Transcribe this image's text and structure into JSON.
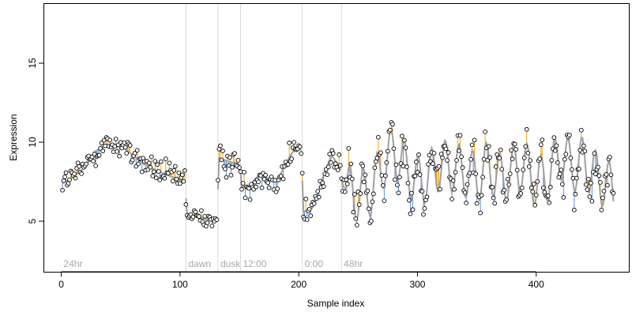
{
  "chart_data": {
    "type": "scatter",
    "title": "",
    "xlabel": "Sample index",
    "ylabel": "Expression",
    "xlim": [
      -15,
      478
    ],
    "ylim": [
      1.8,
      18.8
    ],
    "x_ticks": [
      0,
      100,
      200,
      300,
      400
    ],
    "y_ticks": [
      5,
      10,
      15
    ],
    "grid": false,
    "legend": "none",
    "colors": {
      "fit_line": "#a0a0a0",
      "residual_above": "#f4a30c",
      "residual_below": "#5b8fe0",
      "point_fill": "#ffffff",
      "point_edge": "#000000",
      "region_line": "#dcdcdc",
      "region_label": "#a8a8a8"
    },
    "regions": [
      {
        "label": "24hr",
        "x": 0
      },
      {
        "label": "dawn",
        "x": 105
      },
      {
        "label": "dusk",
        "x": 132
      },
      {
        "label": "12:00",
        "x": 151
      },
      {
        "label": "0:00",
        "x": 203
      },
      {
        "label": "48hr",
        "x": 236
      }
    ],
    "fit_anchors": [
      [
        1,
        7.4
      ],
      [
        10,
        7.8
      ],
      [
        20,
        8.4
      ],
      [
        28,
        9.4
      ],
      [
        35,
        9.7
      ],
      [
        42,
        9.9
      ],
      [
        50,
        9.8
      ],
      [
        60,
        9.2
      ],
      [
        70,
        8.6
      ],
      [
        80,
        8.2
      ],
      [
        90,
        7.9
      ],
      [
        100,
        7.6
      ],
      [
        104,
        7.5
      ],
      [
        106,
        5.4
      ],
      [
        118,
        5.2
      ],
      [
        131,
        5.0
      ],
      [
        133,
        9.0
      ],
      [
        140,
        8.8
      ],
      [
        150,
        8.6
      ],
      [
        152,
        7.6
      ],
      [
        160,
        7.0
      ],
      [
        170,
        7.6
      ],
      [
        180,
        8.1
      ],
      [
        190,
        8.6
      ],
      [
        202,
        9.3
      ],
      [
        204,
        5.6
      ],
      [
        212,
        6.4
      ],
      [
        220,
        7.7
      ],
      [
        228,
        8.6
      ],
      [
        235,
        8.2
      ],
      [
        237,
        7.2
      ],
      [
        250,
        6.6
      ],
      [
        262,
        7.0
      ],
      [
        270,
        8.5
      ],
      [
        280,
        9.5
      ],
      [
        290,
        8.4
      ],
      [
        300,
        7.5
      ],
      [
        310,
        7.9
      ],
      [
        320,
        8.6
      ],
      [
        330,
        8.4
      ],
      [
        340,
        8.1
      ],
      [
        350,
        7.8
      ],
      [
        360,
        8.5
      ],
      [
        370,
        7.6
      ],
      [
        380,
        8.2
      ],
      [
        390,
        8.6
      ],
      [
        400,
        7.4
      ],
      [
        410,
        7.9
      ],
      [
        420,
        9.3
      ],
      [
        430,
        8.4
      ],
      [
        440,
        8.8
      ],
      [
        450,
        7.9
      ],
      [
        460,
        7.3
      ],
      [
        465,
        6.9
      ]
    ],
    "seg_breaks": [
      105,
      132,
      151,
      203,
      236
    ],
    "noise_seed": 12345,
    "oscillation": {
      "start": 240,
      "amplitude": 1.6,
      "period": 11.5
    }
  }
}
